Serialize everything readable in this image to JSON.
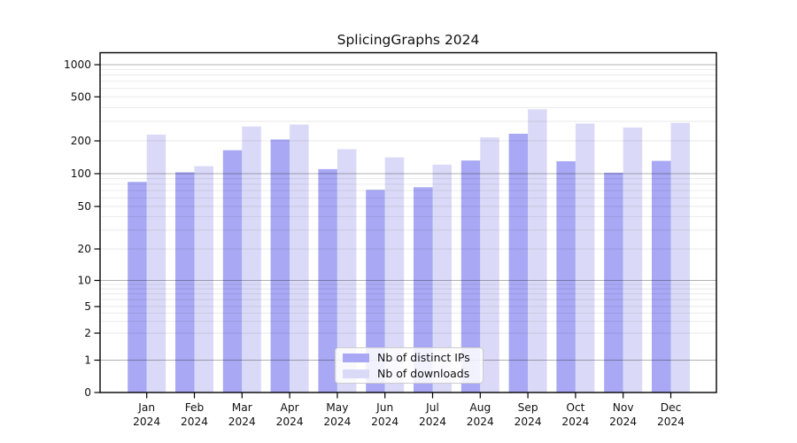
{
  "chart_data": {
    "type": "bar",
    "title": "SplicingGraphs 2024",
    "categories": [
      "Jan 2024",
      "Feb 2024",
      "Mar 2024",
      "Apr 2024",
      "May 2024",
      "Jun 2024",
      "Jul 2024",
      "Aug 2024",
      "Sep 2024",
      "Oct 2024",
      "Nov 2024",
      "Dec 2024"
    ],
    "series": [
      {
        "name": "Nb of distinct IPs",
        "color": "#a8a8f4",
        "values": [
          84,
          103,
          164,
          206,
          110,
          71,
          75,
          132,
          232,
          130,
          102,
          131
        ]
      },
      {
        "name": "Nb of downloads",
        "color": "#dadaf8",
        "values": [
          228,
          117,
          270,
          281,
          168,
          141,
          121,
          215,
          386,
          287,
          264,
          291
        ]
      }
    ],
    "y_axis": {
      "scale": "log-like (0 pinned at baseline)",
      "tick_values": [
        0,
        1,
        2,
        5,
        10,
        20,
        50,
        100,
        200,
        500,
        1000
      ],
      "tick_labels": [
        "0",
        "1",
        "2",
        "5",
        "10",
        "20",
        "50",
        "100",
        "200",
        "500",
        "1000"
      ],
      "ylim": [
        0,
        1300
      ]
    },
    "x_axis": {
      "tick_label_style": "two lines: month / year"
    },
    "legend": {
      "position": "inside bottom center",
      "entries": [
        "Nb of distinct IPs",
        "Nb of downloads"
      ]
    },
    "grid": {
      "horizontal": true,
      "minor_and_major": true,
      "drawn_over_bars": true
    }
  }
}
